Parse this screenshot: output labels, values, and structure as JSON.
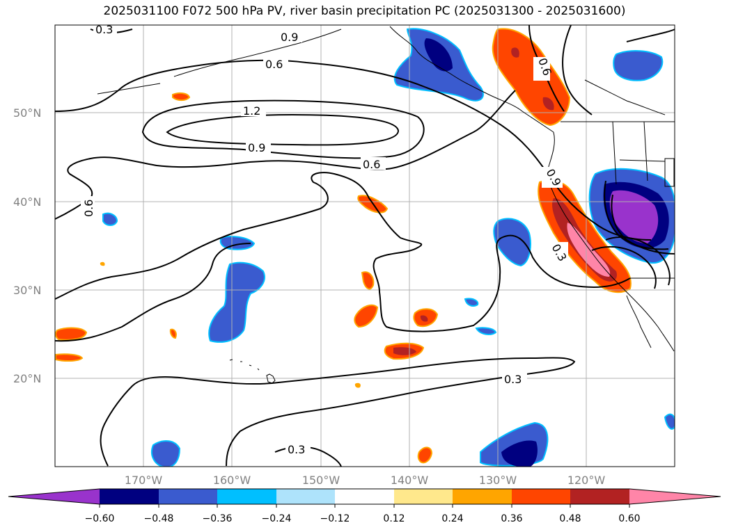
{
  "title": "2025031100 F072 500 hPa PV, river basin precipitation PC (2025031300 - 2025031600)",
  "map": {
    "lat_ticks": [
      "50°N",
      "40°N",
      "30°N",
      "20°N"
    ],
    "lon_ticks": [
      "170°W",
      "160°W",
      "150°W",
      "140°W",
      "130°W",
      "120°W"
    ],
    "pv_contour_labels": [
      "0.3",
      "0.9",
      "0.6",
      "1.2",
      "0.9",
      "0.6",
      "0.6",
      "0.9",
      "0.3",
      "0.3",
      "0.6",
      "0.3"
    ],
    "variables": [
      "500 hPa PV",
      "river basin precipitation PC"
    ]
  },
  "colorbar": {
    "ticks": [
      "−0.60",
      "−0.48",
      "−0.36",
      "−0.24",
      "−0.12",
      "0.12",
      "0.24",
      "0.36",
      "0.48",
      "0.60"
    ],
    "colors": [
      "#9933cc",
      "#000080",
      "#3a5bcf",
      "#00bfff",
      "#aee3fb",
      "#ffffff",
      "#ffe88c",
      "#ffa500",
      "#ff4500",
      "#b22222",
      "#ff85a8"
    ]
  }
}
